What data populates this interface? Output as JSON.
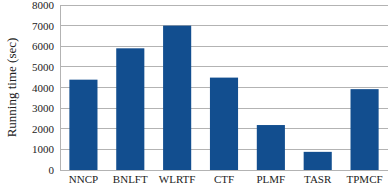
{
  "chart_data": {
    "type": "bar",
    "y_label": "Running time (sec)",
    "categories": [
      "NNCP",
      "BNLFT",
      "WLRTF",
      "CTF",
      "PLMF",
      "TASR",
      "TPMCF"
    ],
    "values": [
      4380,
      5900,
      7000,
      4480,
      2180,
      880,
      3920
    ],
    "color": "#124e8f",
    "ylim": [
      0,
      8000
    ],
    "yticks": [
      0,
      1000,
      2000,
      3000,
      4000,
      5000,
      6000,
      7000,
      8000
    ],
    "grid": true
  }
}
